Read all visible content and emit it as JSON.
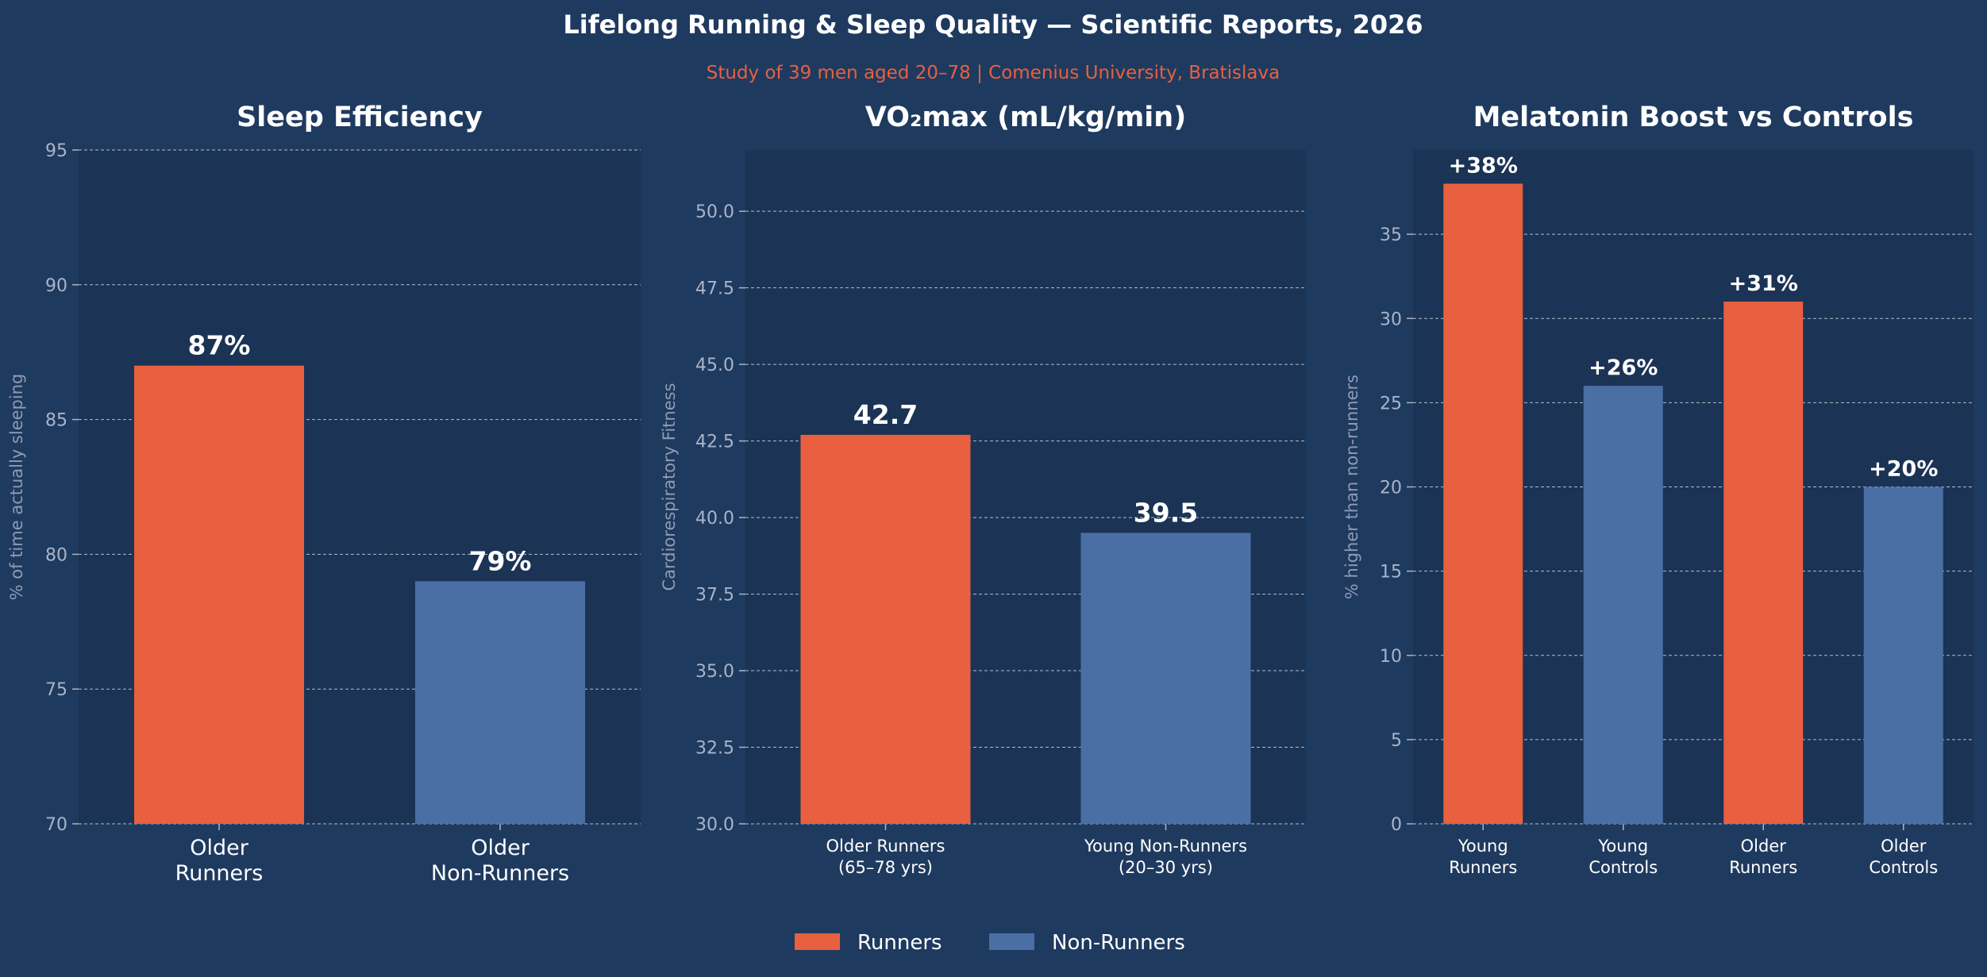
{
  "header": {
    "title": "Lifelong Running & Sleep Quality — Scientific Reports, 2026",
    "subtitle": "Study of 39 men aged 20–78  |  Comenius University, Bratislava"
  },
  "colors": {
    "background": "#1f3a5f",
    "plot_bg": "#1b3354",
    "runners": "#e8603f",
    "non_runners": "#4a6fa5",
    "grid": "#d0d6e0"
  },
  "legend": {
    "placement": "bottom-center",
    "entries": [
      {
        "label": "Runners",
        "color": "#e8603f"
      },
      {
        "label": "Non-Runners",
        "color": "#4a6fa5"
      }
    ]
  },
  "chart_data": [
    {
      "type": "bar",
      "title": "Sleep Efficiency",
      "ylabel": "% of time actually sleeping",
      "xlabel": "",
      "categories": [
        [
          "Older",
          "Runners"
        ],
        [
          "Older",
          "Non-Runners"
        ]
      ],
      "values": [
        87,
        79
      ],
      "value_labels": [
        "87%",
        "79%"
      ],
      "groups": [
        "runners",
        "non_runners"
      ],
      "ylim": [
        70,
        95
      ],
      "yticks": [
        70,
        75,
        80,
        85,
        90,
        95
      ],
      "ytick_labels": [
        "70",
        "75",
        "80",
        "85",
        "90",
        "95"
      ],
      "grid": true
    },
    {
      "type": "bar",
      "title": "VO₂max (mL/kg/min)",
      "ylabel": "Cardiorespiratory Fitness",
      "xlabel": "",
      "categories": [
        [
          "Older Runners",
          "(65–78 yrs)"
        ],
        [
          "Young Non-Runners",
          "(20–30 yrs)"
        ]
      ],
      "values": [
        42.7,
        39.5
      ],
      "value_labels": [
        "42.7",
        "39.5"
      ],
      "groups": [
        "runners",
        "non_runners"
      ],
      "ylim": [
        30,
        52
      ],
      "yticks": [
        30,
        32.5,
        35,
        37.5,
        40,
        42.5,
        45,
        47.5,
        50
      ],
      "ytick_labels": [
        "30.0",
        "32.5",
        "35.0",
        "37.5",
        "40.0",
        "42.5",
        "45.0",
        "47.5",
        "50.0"
      ],
      "grid": true
    },
    {
      "type": "bar",
      "title": "Melatonin Boost vs Controls",
      "ylabel": "% higher than non-runners",
      "xlabel": "",
      "categories": [
        [
          "Young",
          "Runners"
        ],
        [
          "Young",
          "Controls"
        ],
        [
          "Older",
          "Runners"
        ],
        [
          "Older",
          "Controls"
        ]
      ],
      "values": [
        38,
        26,
        31,
        20
      ],
      "value_labels": [
        "+38%",
        "+26%",
        "+31%",
        "+20%"
      ],
      "groups": [
        "runners",
        "non_runners",
        "runners",
        "non_runners"
      ],
      "ylim": [
        0,
        40
      ],
      "yticks": [
        0,
        5,
        10,
        15,
        20,
        25,
        30,
        35
      ],
      "ytick_labels": [
        "0",
        "5",
        "10",
        "15",
        "20",
        "25",
        "30",
        "35"
      ],
      "grid": true
    }
  ]
}
